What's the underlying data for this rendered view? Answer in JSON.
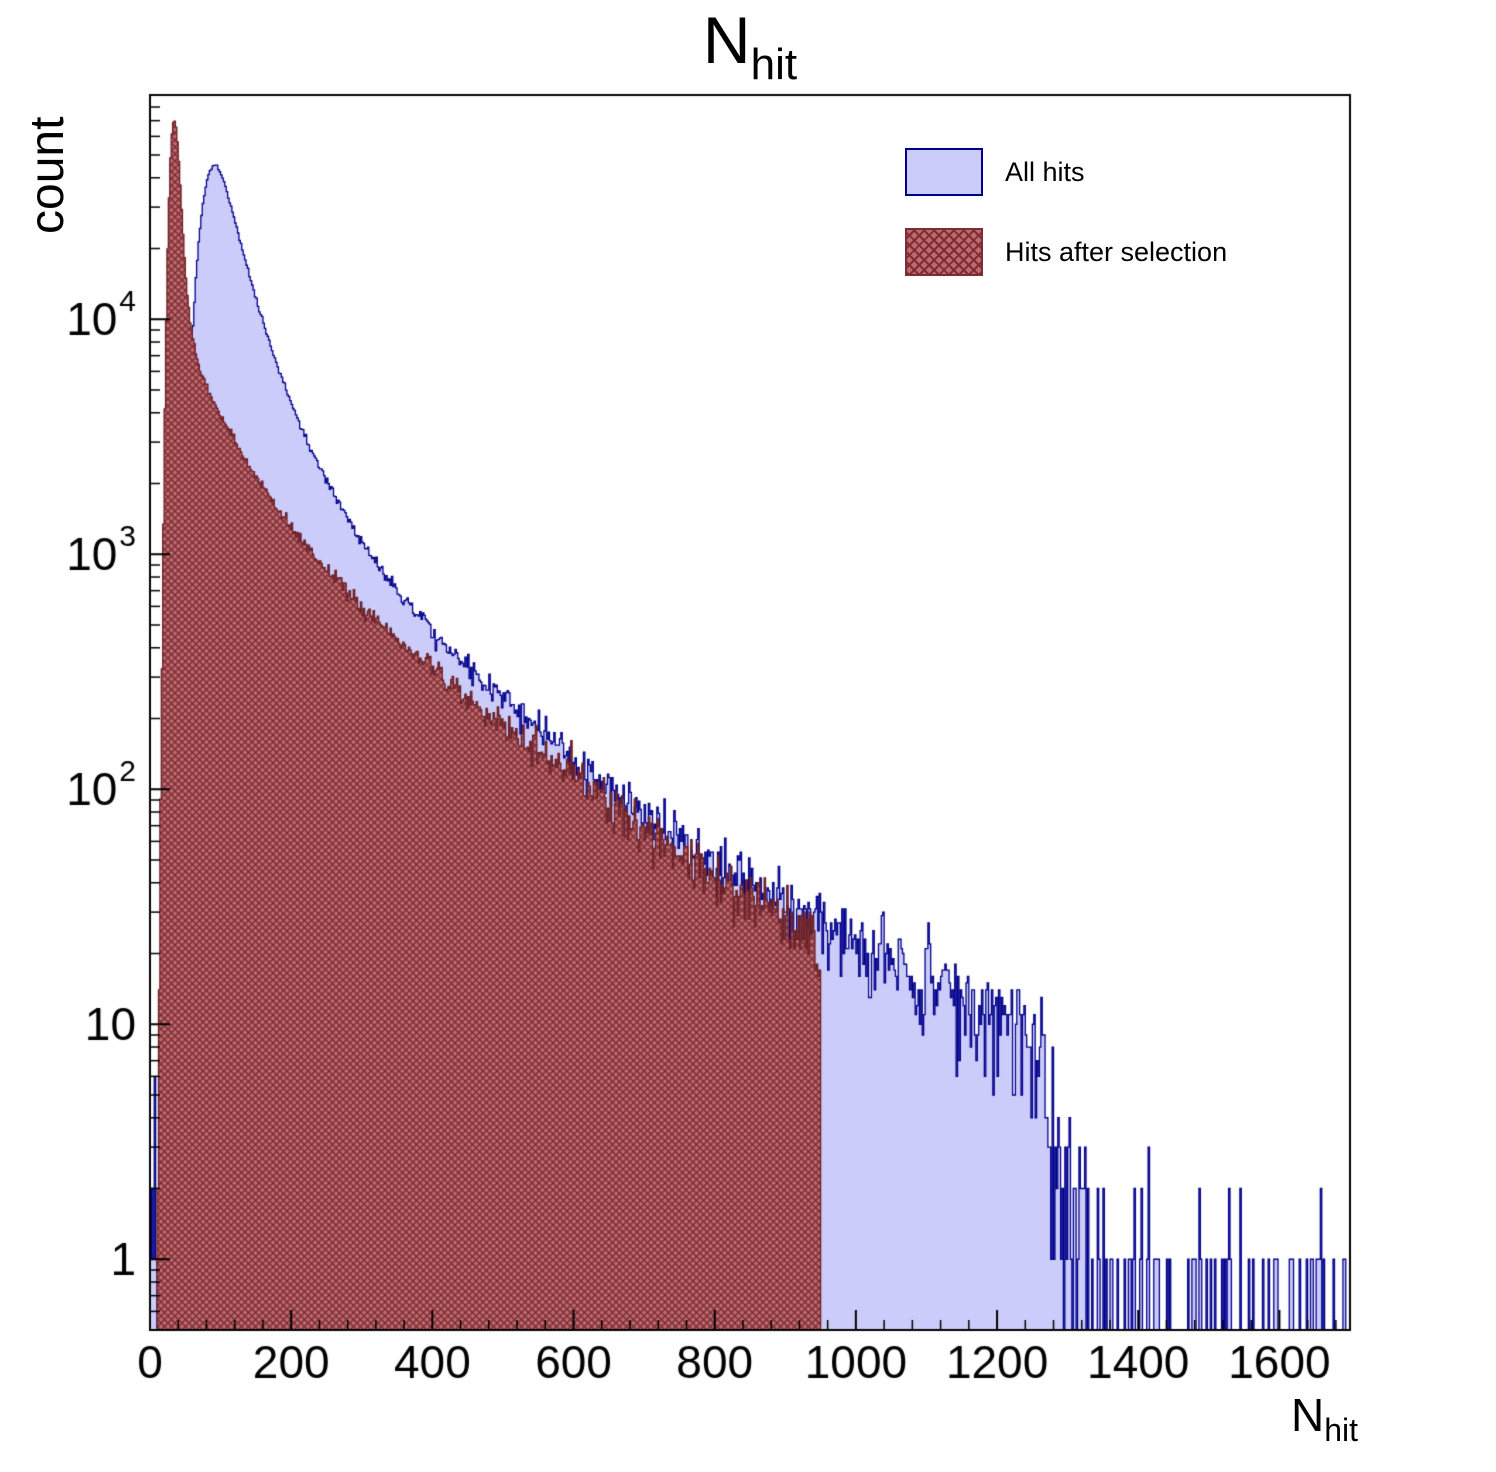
{
  "title": {
    "main": "N",
    "sub": "hit"
  },
  "axes": {
    "x": {
      "label_main": "N",
      "label_sub": "hit"
    },
    "y": {
      "label": "count"
    }
  },
  "legend": {
    "items": [
      {
        "label": "All hits"
      },
      {
        "label": "Hits after selection"
      }
    ]
  },
  "colors": {
    "all_hits_fill": "#ccccfa",
    "all_hits_line": "#00008b",
    "selected_fill_bg": "#bb6a70",
    "selected_hatch": "#7e2d33",
    "selected_line": "#6b2026",
    "frame": "#000000"
  },
  "chart_data": {
    "type": "histogram",
    "title": "N_hit",
    "xlabel": "N_hit",
    "ylabel": "count",
    "yscale": "log",
    "xlim": [
      0,
      1700
    ],
    "ylim": [
      0.5,
      90000
    ],
    "bin_width": 2,
    "x_ticks": [
      0,
      200,
      400,
      600,
      800,
      1000,
      1200,
      1400,
      1600
    ],
    "x_minor_step": 40,
    "y_ticks": [
      {
        "value": 1,
        "label": "1"
      },
      {
        "value": 10,
        "label": "10"
      },
      {
        "value": 100,
        "label": "10",
        "exp": "2"
      },
      {
        "value": 1000,
        "label": "10",
        "exp": "3"
      },
      {
        "value": 10000,
        "label": "10",
        "exp": "4"
      }
    ],
    "legend_position": "top-right",
    "grid": false,
    "seed": 12345,
    "series": [
      {
        "name": "All hits",
        "style": "solid",
        "fill": "#ccccfa",
        "stroke": "#00008b",
        "envelope": [
          [
            0,
            0.4
          ],
          [
            5,
            2.5
          ],
          [
            10,
            0.6
          ],
          [
            20,
            0.5
          ],
          [
            30,
            3
          ],
          [
            35,
            20
          ],
          [
            40,
            120
          ],
          [
            45,
            500
          ],
          [
            50,
            1800
          ],
          [
            55,
            4200
          ],
          [
            60,
            8500
          ],
          [
            65,
            15000
          ],
          [
            70,
            23000
          ],
          [
            75,
            31000
          ],
          [
            80,
            38000
          ],
          [
            85,
            43000
          ],
          [
            90,
            45500
          ],
          [
            95,
            45000
          ],
          [
            100,
            42000
          ],
          [
            105,
            38500
          ],
          [
            110,
            34000
          ],
          [
            115,
            30000
          ],
          [
            120,
            26500
          ],
          [
            125,
            23200
          ],
          [
            130,
            20300
          ],
          [
            140,
            15800
          ],
          [
            150,
            12300
          ],
          [
            160,
            9800
          ],
          [
            170,
            7900
          ],
          [
            180,
            6400
          ],
          [
            190,
            5300
          ],
          [
            200,
            4400
          ],
          [
            215,
            3400
          ],
          [
            230,
            2700
          ],
          [
            250,
            2050
          ],
          [
            270,
            1600
          ],
          [
            290,
            1270
          ],
          [
            310,
            1030
          ],
          [
            330,
            850
          ],
          [
            350,
            710
          ],
          [
            375,
            580
          ],
          [
            400,
            470
          ],
          [
            430,
            380
          ],
          [
            460,
            310
          ],
          [
            490,
            258
          ],
          [
            520,
            215
          ],
          [
            550,
            180
          ],
          [
            580,
            152
          ],
          [
            610,
            128
          ],
          [
            640,
            108
          ],
          [
            670,
            92
          ],
          [
            700,
            78
          ],
          [
            730,
            67
          ],
          [
            760,
            58
          ],
          [
            790,
            50
          ],
          [
            820,
            44
          ],
          [
            850,
            39
          ],
          [
            880,
            34
          ],
          [
            910,
            30
          ],
          [
            940,
            27
          ],
          [
            970,
            24
          ],
          [
            1000,
            21.5
          ],
          [
            1030,
            19.5
          ],
          [
            1060,
            17.5
          ],
          [
            1090,
            16
          ],
          [
            1120,
            14.5
          ],
          [
            1150,
            13
          ],
          [
            1180,
            11.5
          ],
          [
            1210,
            10.5
          ],
          [
            1235,
            9.5
          ],
          [
            1255,
            8
          ],
          [
            1270,
            5
          ],
          [
            1285,
            3
          ],
          [
            1300,
            2
          ],
          [
            1320,
            1.2
          ],
          [
            1340,
            0.8
          ],
          [
            1380,
            0.55
          ],
          [
            1440,
            0.45
          ],
          [
            1520,
            0.35
          ],
          [
            1600,
            0.3
          ],
          [
            1700,
            0.28
          ]
        ]
      },
      {
        "name": "Hits after selection",
        "style": "hatch",
        "fill_bg": "#bb6a70",
        "hatch": "#7e2d33",
        "stroke": "#6b2026",
        "cutoff": 952,
        "envelope": [
          [
            8,
            0.5
          ],
          [
            12,
            8
          ],
          [
            15,
            80
          ],
          [
            18,
            700
          ],
          [
            20,
            2500
          ],
          [
            22,
            7000
          ],
          [
            25,
            20000
          ],
          [
            28,
            42000
          ],
          [
            30,
            57000
          ],
          [
            32,
            67000
          ],
          [
            34,
            71000
          ],
          [
            36,
            69000
          ],
          [
            38,
            62000
          ],
          [
            40,
            52000
          ],
          [
            42,
            42000
          ],
          [
            44,
            33000
          ],
          [
            46,
            26000
          ],
          [
            48,
            20500
          ],
          [
            50,
            16500
          ],
          [
            53,
            12800
          ],
          [
            56,
            10400
          ],
          [
            60,
            8600
          ],
          [
            65,
            7200
          ],
          [
            70,
            6300
          ],
          [
            75,
            5700
          ],
          [
            80,
            5200
          ],
          [
            85,
            4800
          ],
          [
            90,
            4450
          ],
          [
            95,
            4150
          ],
          [
            100,
            3900
          ],
          [
            110,
            3450
          ],
          [
            120,
            3050
          ],
          [
            130,
            2700
          ],
          [
            140,
            2400
          ],
          [
            150,
            2150
          ],
          [
            165,
            1850
          ],
          [
            180,
            1580
          ],
          [
            200,
            1300
          ],
          [
            220,
            1090
          ],
          [
            240,
            930
          ],
          [
            260,
            800
          ],
          [
            280,
            690
          ],
          [
            300,
            600
          ],
          [
            325,
            510
          ],
          [
            350,
            435
          ],
          [
            375,
            375
          ],
          [
            400,
            325
          ],
          [
            430,
            272
          ],
          [
            460,
            230
          ],
          [
            490,
            196
          ],
          [
            520,
            168
          ],
          [
            550,
            144
          ],
          [
            580,
            124
          ],
          [
            610,
            107
          ],
          [
            640,
            92
          ],
          [
            670,
            80
          ],
          [
            700,
            69
          ],
          [
            730,
            60
          ],
          [
            760,
            52
          ],
          [
            790,
            46
          ],
          [
            820,
            40
          ],
          [
            850,
            35
          ],
          [
            880,
            31
          ],
          [
            910,
            27
          ],
          [
            935,
            24
          ],
          [
            950,
            22
          ]
        ]
      }
    ]
  }
}
